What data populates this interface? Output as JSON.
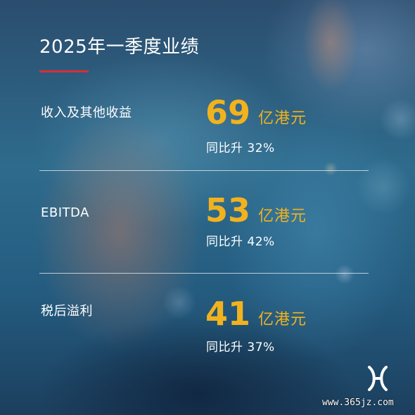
{
  "title": "2025年一季度业绩",
  "metrics": [
    {
      "label": "收入及其他收益",
      "value": "69",
      "unit": "亿港元",
      "growth": "同比升 32%"
    },
    {
      "label": "EBITDA",
      "value": "53",
      "unit": "亿港元",
      "growth": "同比升 42%"
    },
    {
      "label": "税后溢利",
      "value": "41",
      "unit": "亿港元",
      "growth": "同比升 37%"
    }
  ],
  "watermark": "www.365jz.com",
  "colors": {
    "accent_value": "#f2b21e",
    "title_rule": "#d92d3a",
    "text": "#ffffff"
  },
  "logo_icon": "hkex-logo-icon"
}
